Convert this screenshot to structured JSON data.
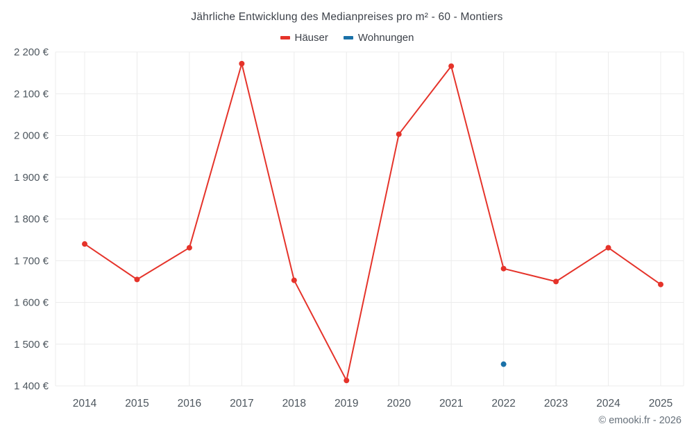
{
  "chart_data": {
    "type": "line",
    "title": "Jährliche Entwicklung des Medianpreises pro m² - 60 - Montiers",
    "x": [
      "2014",
      "2015",
      "2016",
      "2017",
      "2018",
      "2019",
      "2020",
      "2021",
      "2022",
      "2023",
      "2024",
      "2025"
    ],
    "series": [
      {
        "name": "Häuser",
        "color": "#e5332a",
        "values": [
          1740,
          1655,
          1731,
          2172,
          1653,
          1413,
          2003,
          2166,
          1681,
          1650,
          1731,
          1643
        ]
      },
      {
        "name": "Wohnungen",
        "color": "#1a71a8",
        "values": [
          null,
          null,
          null,
          null,
          null,
          null,
          null,
          null,
          1452,
          null,
          null,
          null
        ]
      }
    ],
    "ylim": [
      1400,
      2200
    ],
    "ytick_step": 100,
    "ytick_suffix": " €",
    "grid": true,
    "legend_position": "top"
  },
  "footer": {
    "copyright": "© emooki.fr - 2026"
  },
  "colors": {
    "grid": "#ececec",
    "axis_text": "#4d565e",
    "title_text": "#3c4149"
  }
}
